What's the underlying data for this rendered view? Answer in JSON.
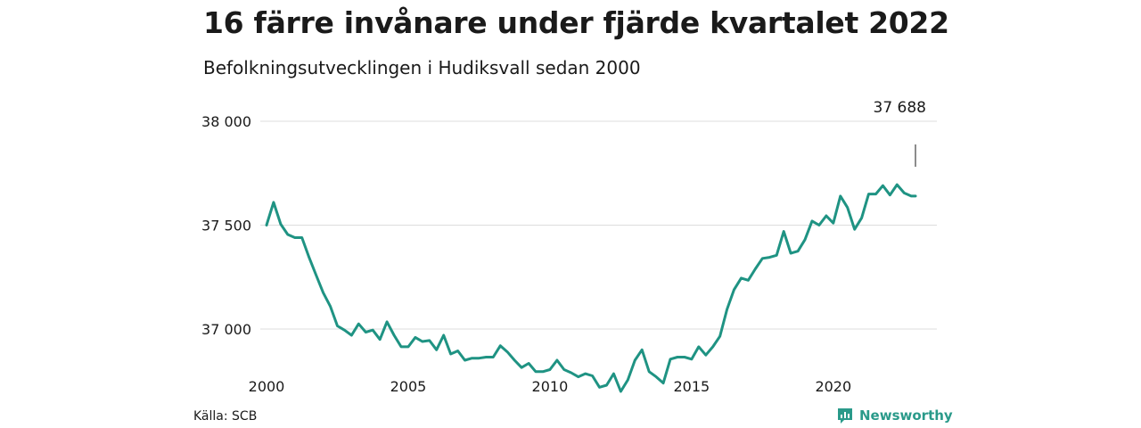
{
  "header": {
    "title": "16 färre invånare under fjärde kvartalet 2022",
    "subtitle": "Befolkningsutvecklingen i Hudiksvall sedan 2000"
  },
  "footer": {
    "source": "Källa: SCB",
    "brand": "Newsworthy",
    "brand_icon": "newsworthy-logo-icon"
  },
  "colors": {
    "line": "#1f9383",
    "grid": "#dddddd",
    "brand": "#2a9a8a"
  },
  "chart_data": {
    "type": "line",
    "title": "16 färre invånare under fjärde kvartalet 2022",
    "subtitle": "Befolkningsutvecklingen i Hudiksvall sedan 2000",
    "xlabel": "",
    "ylabel": "",
    "grid": true,
    "xlim": [
      2000,
      2022.9
    ],
    "ylim": [
      36850,
      38000
    ],
    "x_ticks": [
      2000,
      2005,
      2010,
      2015,
      2020
    ],
    "y_ticks": [
      {
        "value": 37000,
        "label": "37 000"
      },
      {
        "value": 37500,
        "label": "37 500"
      },
      {
        "value": 38000,
        "label": "38 000"
      }
    ],
    "annotation": {
      "x": 2022.9,
      "label": "37 688"
    },
    "series": [
      {
        "x": [
          2000.0,
          2000.25,
          2000.5,
          2000.75,
          2001.0,
          2001.25,
          2001.5,
          2001.75,
          2002.0,
          2002.25,
          2002.5,
          2002.75,
          2003.0,
          2003.25,
          2003.5,
          2003.75,
          2004.0,
          2004.25,
          2004.5,
          2004.75,
          2005.0,
          2005.25,
          2005.5,
          2005.75,
          2006.0,
          2006.25,
          2006.5,
          2006.75,
          2007.0,
          2007.25,
          2007.5,
          2007.75,
          2008.0,
          2008.25,
          2008.5,
          2008.75,
          2009.0,
          2009.25,
          2009.5,
          2009.75,
          2010.0,
          2010.25,
          2010.5,
          2010.75,
          2011.0,
          2011.25,
          2011.5,
          2011.75,
          2012.0,
          2012.25,
          2012.5,
          2012.75,
          2013.0,
          2013.25,
          2013.5,
          2013.75,
          2014.0,
          2014.25,
          2014.5,
          2014.75,
          2015.0,
          2015.25,
          2015.5,
          2015.75,
          2016.0,
          2016.25,
          2016.5,
          2016.75,
          2017.0,
          2017.25,
          2017.5,
          2017.75,
          2018.0,
          2018.25,
          2018.5,
          2018.75,
          2019.0,
          2019.25,
          2019.5,
          2019.75,
          2020.0,
          2020.25,
          2020.5,
          2020.75,
          2021.0,
          2021.25,
          2021.5,
          2021.75,
          2022.0,
          2022.25,
          2022.5,
          2022.75,
          2022.9
        ],
        "values": [
          37500,
          37610,
          37505,
          37455,
          37440,
          37440,
          37345,
          37260,
          37175,
          37110,
          37015,
          36995,
          36970,
          37025,
          36985,
          36995,
          36950,
          37035,
          36970,
          36915,
          36915,
          36960,
          36940,
          36945,
          36900,
          36970,
          36880,
          36895,
          36850,
          36860,
          36860,
          36865,
          36865,
          36920,
          36890,
          36850,
          36815,
          36835,
          36795,
          36795,
          36805,
          36850,
          36805,
          36790,
          36770,
          36785,
          36775,
          36720,
          36730,
          36785,
          36700,
          36755,
          36850,
          36900,
          36795,
          36770,
          36740,
          36855,
          36865,
          36865,
          36855,
          36915,
          36875,
          36915,
          36965,
          37095,
          37190,
          37245,
          37235,
          37290,
          37340,
          37345,
          37355,
          37470,
          37365,
          37375,
          37430,
          37520,
          37500,
          37545,
          37510,
          37640,
          37585,
          37480,
          37535,
          37650,
          37650,
          37690,
          37645,
          37695,
          37655,
          37640,
          37640
        ]
      }
    ]
  }
}
